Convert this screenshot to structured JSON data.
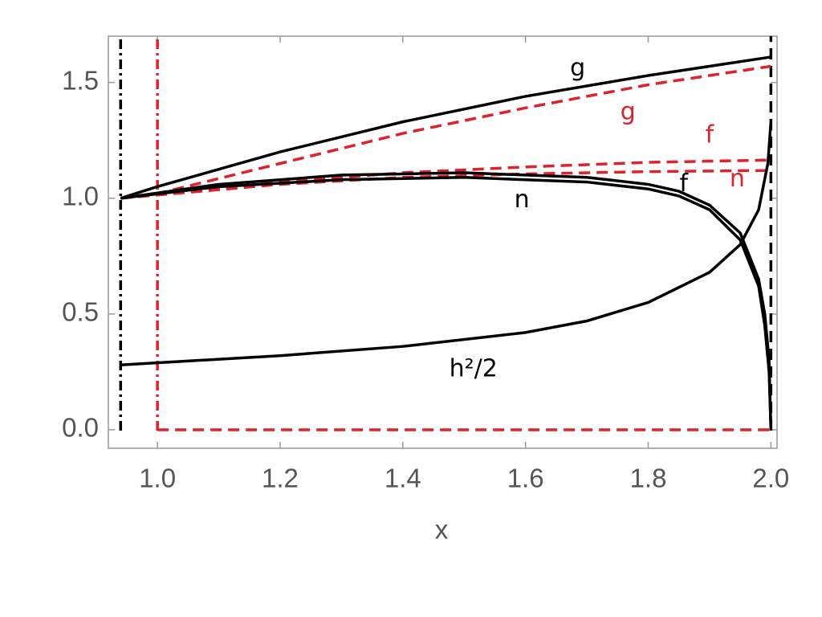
{
  "chart_data": {
    "type": "line",
    "x_label": "x",
    "xlim": [
      0.92,
      2.01
    ],
    "ylim": [
      -0.08,
      1.7
    ],
    "xticks": [
      {
        "value": 1,
        "label": "1.0"
      },
      1.2,
      1.4,
      1.6,
      1.8,
      {
        "value": 2,
        "label": "2.0"
      }
    ],
    "yticks": [
      {
        "value": 0,
        "label": "0.0"
      },
      0.5,
      {
        "value": 1,
        "label": "1.0"
      },
      1.5
    ],
    "series": [
      {
        "color": "#000000",
        "dash": "solid",
        "x": [
          0.94,
          1.0,
          1.2,
          1.4,
          1.6,
          1.8,
          2.0
        ],
        "values": [
          1.0,
          1.05,
          1.2,
          1.33,
          1.44,
          1.53,
          1.61
        ]
      },
      {
        "color": "#e0202a",
        "dash": "dashed",
        "x": [
          0.94,
          1.0,
          1.2,
          1.4,
          1.6,
          1.8,
          2.0
        ],
        "values": [
          1.0,
          1.02,
          1.15,
          1.28,
          1.39,
          1.49,
          1.57
        ]
      },
      {
        "color": "#e0202a",
        "dash": "dashed",
        "x": [
          0.94,
          1.2,
          1.4,
          1.6,
          1.8,
          2.0
        ],
        "values": [
          1.0,
          1.07,
          1.11,
          1.135,
          1.155,
          1.165
        ]
      },
      {
        "color": "#e0202a",
        "dash": "dashed",
        "x": [
          0.94,
          1.2,
          1.4,
          1.6,
          1.8,
          2.0
        ],
        "values": [
          1.0,
          1.06,
          1.09,
          1.105,
          1.115,
          1.12
        ]
      },
      {
        "color": "#000000",
        "dash": "solid",
        "x": [
          0.94,
          1.1,
          1.3,
          1.5,
          1.7,
          1.8,
          1.85,
          1.9,
          1.95,
          1.98,
          1.99,
          1.997,
          2.0
        ],
        "values": [
          1.0,
          1.06,
          1.1,
          1.11,
          1.09,
          1.06,
          1.03,
          0.97,
          0.85,
          0.65,
          0.5,
          0.3,
          0.0
        ]
      },
      {
        "color": "#000000",
        "dash": "solid",
        "x": [
          0.94,
          1.1,
          1.3,
          1.5,
          1.7,
          1.8,
          1.85,
          1.9,
          1.95,
          1.98,
          1.99,
          1.997,
          2.0
        ],
        "values": [
          1.0,
          1.05,
          1.08,
          1.09,
          1.07,
          1.04,
          1.01,
          0.95,
          0.82,
          0.62,
          0.45,
          0.25,
          0.0
        ]
      },
      {
        "color": "#000000",
        "dash": "solid",
        "x": [
          0.94,
          1.2,
          1.4,
          1.6,
          1.7,
          1.8,
          1.9,
          1.95,
          1.98,
          1.995,
          2.0
        ],
        "values": [
          0.28,
          0.32,
          0.36,
          0.42,
          0.47,
          0.55,
          0.68,
          0.8,
          0.95,
          1.15,
          1.33
        ]
      },
      {
        "color": "#e0202a",
        "dash": "dashed",
        "x": [
          1.0,
          2.0
        ],
        "values": [
          0,
          0
        ]
      }
    ],
    "vlines": [
      {
        "x": 0.94,
        "color": "#000000",
        "dash": "dashdot"
      },
      {
        "x": 1.0,
        "color": "#e0202a",
        "dash": "dashdot"
      },
      {
        "x": 2.0,
        "color": "#000000",
        "dash": "dashed"
      }
    ],
    "annotations": [
      {
        "text": "g",
        "x": 1.685,
        "y": 1.56,
        "color": "#000000"
      },
      {
        "text": "g",
        "x": 1.767,
        "y": 1.37,
        "color": "#e0202a"
      },
      {
        "text": "f",
        "x": 1.9,
        "y": 1.27,
        "color": "#e0202a"
      },
      {
        "text": "f",
        "x": 1.858,
        "y": 1.06,
        "color": "#000000"
      },
      {
        "text": "n",
        "x": 1.945,
        "y": 1.08,
        "color": "#e0202a"
      },
      {
        "text": "n",
        "x": 1.594,
        "y": 0.99,
        "color": "#000000"
      },
      {
        "text": "h²/2",
        "x": 1.515,
        "y": 0.26,
        "color": "#000000"
      }
    ]
  }
}
